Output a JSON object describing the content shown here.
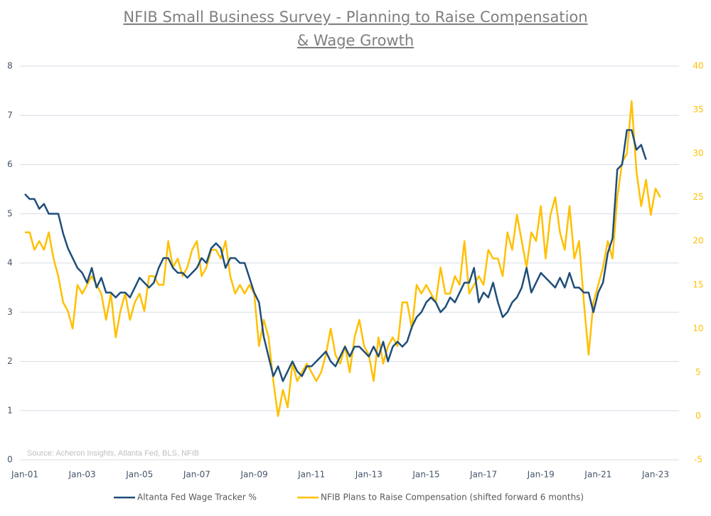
{
  "chart_data": {
    "type": "line",
    "title": "NFIB Small Business Survey - Planning to Raise Compensation",
    "subtitle": "& Wage Growth",
    "annotation": "Source: Acheron Insights, Atlanta Fed, BLS, NFIB",
    "categories": [
      "Jan-01",
      null,
      null,
      null,
      null,
      null,
      null,
      null,
      null,
      null,
      null,
      null,
      "Jan-03",
      null,
      null,
      null,
      null,
      null,
      null,
      null,
      null,
      null,
      null,
      null,
      "Jan-05",
      null,
      null,
      null,
      null,
      null,
      null,
      null,
      null,
      null,
      null,
      null,
      "Jan-07",
      null,
      null,
      null,
      null,
      null,
      null,
      null,
      null,
      null,
      null,
      null,
      "Jan-09",
      null,
      null,
      null,
      null,
      null,
      null,
      null,
      null,
      null,
      null,
      null,
      "Jan-11",
      null,
      null,
      null,
      null,
      null,
      null,
      null,
      null,
      null,
      null,
      null,
      "Jan-13",
      null,
      null,
      null,
      null,
      null,
      null,
      null,
      null,
      null,
      null,
      null,
      "Jan-15",
      null,
      null,
      null,
      null,
      null,
      null,
      null,
      null,
      null,
      null,
      null,
      "Jan-17",
      null,
      null,
      null,
      null,
      null,
      null,
      null,
      null,
      null,
      null,
      null,
      "Jan-19",
      null,
      null,
      null,
      null,
      null,
      null,
      null,
      null,
      null,
      null,
      null,
      "Jan-21",
      null,
      null,
      null,
      null,
      null,
      null,
      null,
      null,
      null,
      null,
      null,
      "Jan-23",
      null
    ],
    "series": [
      {
        "name": "Altanta Fed Wage Tracker %",
        "color": "#1f4e79",
        "axis": "y",
        "values": [
          5.4,
          5.3,
          5.3,
          5.1,
          5.2,
          5.0,
          5.0,
          5.0,
          4.6,
          4.3,
          4.1,
          3.9,
          3.8,
          3.6,
          3.9,
          3.5,
          3.7,
          3.4,
          3.4,
          3.3,
          3.4,
          3.4,
          3.3,
          3.5,
          3.7,
          3.6,
          3.5,
          3.6,
          3.9,
          4.1,
          4.1,
          3.9,
          3.8,
          3.8,
          3.7,
          3.8,
          3.9,
          4.1,
          4.0,
          4.3,
          4.4,
          4.3,
          3.9,
          4.1,
          4.1,
          4.0,
          4.0,
          3.7,
          3.4,
          3.2,
          2.5,
          2.1,
          1.7,
          1.9,
          1.6,
          1.8,
          2.0,
          1.8,
          1.7,
          1.9,
          1.9,
          2.0,
          2.1,
          2.2,
          2.0,
          1.9,
          2.1,
          2.3,
          2.1,
          2.3,
          2.3,
          2.2,
          2.1,
          2.3,
          2.1,
          2.4,
          2.0,
          2.3,
          2.4,
          2.3,
          2.4,
          2.7,
          2.9,
          3.0,
          3.2,
          3.3,
          3.2,
          3.0,
          3.1,
          3.3,
          3.2,
          3.4,
          3.6,
          3.6,
          3.9,
          3.2,
          3.4,
          3.3,
          3.6,
          3.2,
          2.9,
          3.0,
          3.2,
          3.3,
          3.5,
          3.9,
          3.4,
          3.6,
          3.8,
          3.7,
          3.6,
          3.5,
          3.7,
          3.5,
          3.8,
          3.5,
          3.5,
          3.4,
          3.4,
          3.0,
          3.4,
          3.6,
          4.2,
          4.5,
          5.9,
          6.0,
          6.7,
          6.7,
          6.3,
          6.4,
          6.1,
          null,
          null,
          null
        ]
      },
      {
        "name": "NFIB Plans to Raise Compensation (shifted forward 6 months)",
        "color": "#ffc000",
        "axis": "y2",
        "values": [
          21,
          21,
          19,
          20,
          19,
          21,
          18,
          16,
          13,
          12,
          10,
          15,
          14,
          15,
          16,
          15,
          14,
          11,
          14,
          9,
          12,
          14,
          11,
          13,
          14,
          12,
          16,
          16,
          15,
          15,
          20,
          17,
          18,
          16,
          17,
          19,
          20,
          16,
          17,
          19,
          19,
          18,
          20,
          16,
          14,
          15,
          14,
          15,
          14,
          8,
          11,
          9,
          4,
          0,
          3,
          1,
          6,
          4,
          5,
          6,
          5,
          4,
          5,
          7,
          10,
          7,
          6,
          8,
          5,
          9,
          11,
          8,
          7,
          4,
          9,
          6,
          8,
          9,
          8,
          13,
          13,
          10,
          15,
          14,
          15,
          14,
          13,
          17,
          14,
          14,
          16,
          15,
          20,
          14,
          15,
          16,
          15,
          19,
          18,
          18,
          16,
          21,
          19,
          23,
          20,
          17,
          21,
          20,
          24,
          18,
          23,
          25,
          21,
          19,
          24,
          18,
          20,
          13,
          7,
          13,
          15,
          17,
          20,
          18,
          25,
          29,
          30,
          36,
          28,
          24,
          27,
          23,
          26,
          25
        ]
      }
    ],
    "ylim": [
      0,
      8
    ],
    "yticks": [
      0,
      1,
      2,
      3,
      4,
      5,
      6,
      7,
      8
    ],
    "y2lim": [
      -5,
      40
    ],
    "y2ticks": [
      -5,
      0,
      5,
      10,
      15,
      20,
      25,
      30,
      35,
      40
    ],
    "grid": true
  }
}
